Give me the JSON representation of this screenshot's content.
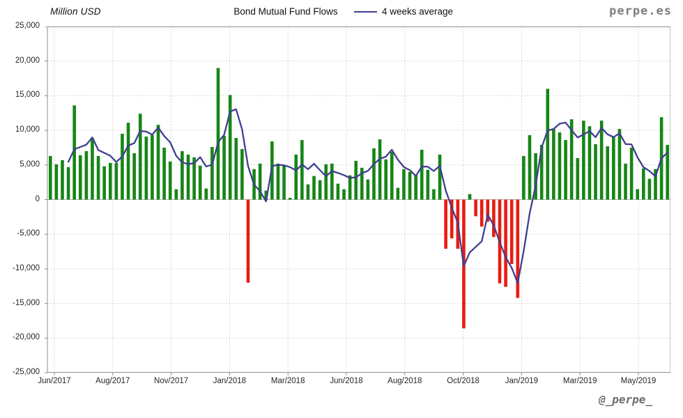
{
  "header": {
    "y_axis_title": "Million USD",
    "title": "Bond Mutual Fund Flows",
    "legend_label": "4 weeks average",
    "watermark": "perpe.es"
  },
  "footer": {
    "handle": "@_perpe_"
  },
  "chart_data": {
    "type": "bar",
    "title": "Bond Mutual Fund Flows",
    "ylabel": "Million USD",
    "frequency": "weekly",
    "x_range": [
      "Jun/2017",
      "May/2019"
    ],
    "ylim": [
      -25000,
      25000
    ],
    "y_tick_step": 5000,
    "grid": true,
    "legend_position": "top",
    "y_tick_labels": [
      "25,000",
      "20,000",
      "15,000",
      "10,000",
      "5,000",
      "0",
      "-5,000",
      "-10,000",
      "-15,000",
      "-20,000",
      "-25,000"
    ],
    "x_tick_labels": [
      "Jun/2017",
      "Aug/2017",
      "Nov/2017",
      "Jan/2018",
      "Mar/2018",
      "Jun/2018",
      "Aug/2018",
      "Oct/2018",
      "Jan/2019",
      "Mar/2019",
      "May/2019"
    ],
    "series": [
      {
        "name": "Bond Mutual Fund Flows",
        "type": "bar",
        "values": [
          6300,
          5100,
          5700,
          4700,
          13600,
          6400,
          7000,
          8900,
          6300,
          4800,
          5300,
          5300,
          9500,
          11100,
          6700,
          12400,
          9100,
          9300,
          10800,
          7500,
          5500,
          1500,
          7000,
          6500,
          6100,
          4900,
          1600,
          7600,
          19000,
          9200,
          15100,
          8900,
          7300,
          -12000,
          4400,
          5200,
          1300,
          8400,
          5200,
          4900,
          250,
          6500,
          8600,
          2200,
          3400,
          2800,
          5100,
          5200,
          2300,
          1500,
          3500,
          5600,
          4600,
          2900,
          7400,
          8700,
          5800,
          6900,
          1700,
          4400,
          4000,
          3500,
          7200,
          4300,
          1500,
          6500,
          -7100,
          -5600,
          -7100,
          -18600,
          800,
          -2400,
          -3900,
          -3200,
          -5400,
          -12100,
          -12600,
          -9300,
          -14200,
          6300,
          9300,
          6700,
          7900,
          16000,
          10200,
          9700,
          8600,
          11600,
          6000,
          11400,
          10600,
          8000,
          11400,
          7700,
          9000,
          10200,
          5200,
          7500,
          1500,
          4500,
          3000,
          4400,
          11900,
          7900
        ]
      },
      {
        "name": "4 weeks average",
        "type": "line",
        "derived": "rolling_mean_window_4_of_bar_series"
      }
    ],
    "colors": {
      "bar_positive": "#178517",
      "bar_negative": "#e81c12",
      "average_line": "#3e3e90",
      "gridline": "#c9c9c9",
      "plot_border": "#8f8f8f",
      "zero_line": "#b2b2b2",
      "watermark": "#7f7f7f",
      "handle": "#6e6e6e"
    }
  }
}
